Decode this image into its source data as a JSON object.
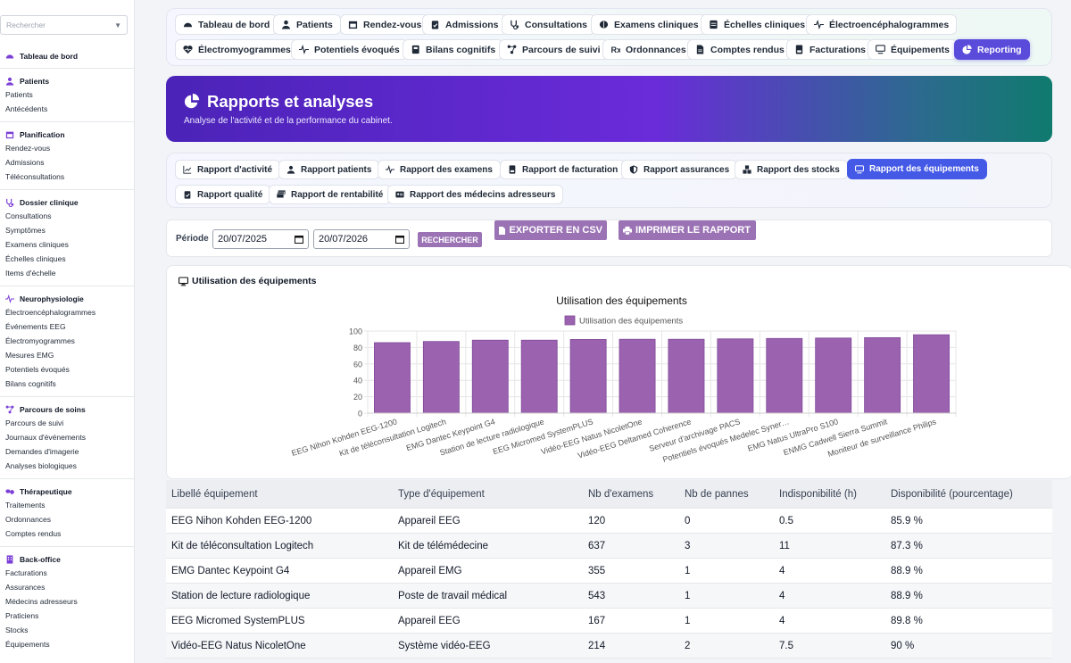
{
  "sidebar": {
    "search_placeholder": "Rechercher",
    "sections": [
      {
        "title": "Tableau de bord",
        "icon": "gauge-icon",
        "items": []
      },
      {
        "title": "Patients",
        "icon": "user-icon",
        "items": [
          "Patients",
          "Antécédents"
        ]
      },
      {
        "title": "Planification",
        "icon": "calendar-icon",
        "items": [
          "Rendez-vous",
          "Admissions",
          "Téléconsultations"
        ]
      },
      {
        "title": "Dossier clinique",
        "icon": "stethoscope-icon",
        "items": [
          "Consultations",
          "Symptômes",
          "Examens cliniques",
          "Échelles cliniques",
          "Items d'échelle"
        ]
      },
      {
        "title": "Neurophysiologie",
        "icon": "waveform-icon",
        "items": [
          "Électroencéphalogrammes",
          "Événements EEG",
          "Électromyogrammes",
          "Mesures EMG",
          "Potentiels évoqués",
          "Bilans cognitifs"
        ]
      },
      {
        "title": "Parcours de soins",
        "icon": "route-icon",
        "items": [
          "Parcours de suivi",
          "Journaux d'événements",
          "Demandes d'imagerie",
          "Analyses biologiques"
        ]
      },
      {
        "title": "Thérapeutique",
        "icon": "pills-icon",
        "items": [
          "Traitements",
          "Ordonnances",
          "Comptes rendus"
        ]
      },
      {
        "title": "Back-office",
        "icon": "building-icon",
        "items": [
          "Facturations",
          "Assurances",
          "Médecins adresseurs",
          "Praticiens",
          "Stocks",
          "Équipements"
        ]
      }
    ]
  },
  "topnav": {
    "tabs": [
      {
        "label": "Tableau de bord",
        "icon": "gauge-icon"
      },
      {
        "label": "Patients",
        "icon": "user-icon"
      },
      {
        "label": "Rendez-vous",
        "icon": "calendar-icon"
      },
      {
        "label": "Admissions",
        "icon": "clipboard-check-icon"
      },
      {
        "label": "Consultations",
        "icon": "stethoscope-icon"
      },
      {
        "label": "Examens cliniques",
        "icon": "brain-icon"
      },
      {
        "label": "Échelles cliniques",
        "icon": "list-icon"
      },
      {
        "label": "Électroencéphalogrammes",
        "icon": "waveform-icon"
      },
      {
        "label": "Électromyogrammes",
        "icon": "heart-pulse-icon"
      },
      {
        "label": "Potentiels évoqués",
        "icon": "waveform-icon"
      },
      {
        "label": "Bilans cognitifs",
        "icon": "book-icon"
      },
      {
        "label": "Parcours de suivi",
        "icon": "route-icon"
      },
      {
        "label": "Ordonnances",
        "icon": "prescription-icon"
      },
      {
        "label": "Comptes rendus",
        "icon": "file-icon"
      },
      {
        "label": "Facturations",
        "icon": "invoice-icon"
      },
      {
        "label": "Équipements",
        "icon": "desktop-icon"
      },
      {
        "label": "Reporting",
        "icon": "pie-chart-icon"
      }
    ]
  },
  "banner": {
    "title": "Rapports et analyses",
    "subtitle": "Analyse de l'activité et de la performance du cabinet."
  },
  "report_tabs": [
    {
      "label": "Rapport d'activité",
      "icon": "line-chart-icon"
    },
    {
      "label": "Rapport patients",
      "icon": "user-icon"
    },
    {
      "label": "Rapport des examens",
      "icon": "waveform-icon"
    },
    {
      "label": "Rapport de facturation",
      "icon": "invoice-icon"
    },
    {
      "label": "Rapport assurances",
      "icon": "shield-icon"
    },
    {
      "label": "Rapport des stocks",
      "icon": "boxes-icon"
    },
    {
      "label": "Rapport des équipements",
      "icon": "desktop-icon"
    },
    {
      "label": "Rapport qualité",
      "icon": "clipboard-check-icon"
    },
    {
      "label": "Rapport de rentabilité",
      "icon": "money-icon"
    },
    {
      "label": "Rapport des médecins adresseurs",
      "icon": "id-card-icon"
    }
  ],
  "filters": {
    "period_label": "Période",
    "date_from": "20/07/2025",
    "date_to": "20/07/2026",
    "search_button": "RECHERCHER",
    "export_button": "EXPORTER EN CSV",
    "print_button": "IMPRIMER LE RAPPORT"
  },
  "card": {
    "title": "Utilisation des équipements"
  },
  "colors": {
    "bar": "#9b62b0",
    "bar_stroke": "#7f4a98",
    "accent": "#5b4bdb"
  },
  "chart_data": {
    "type": "bar",
    "title": "Utilisation des équipements",
    "categories": [
      "EEG Nihon Kohden EEG-1200",
      "Kit de téléconsultation Logitech",
      "EMG Dantec Keypoint G4",
      "Station de lecture radiologique",
      "EEG Micromed SystemPLUS",
      "Vidéo-EEG Natus NicoletOne",
      "Vidéo-EEG Deltamed Coherence",
      "Serveur d'archivage PACS",
      "Potentiels évoqués Medelec Syner…",
      "EMG Natus UltraPro S100",
      "ENMG Cadwell Sierra Summit",
      "Moniteur de surveillance Philips"
    ],
    "series": [
      {
        "name": "Utilisation des équipements",
        "values": [
          85.9,
          87.3,
          88.9,
          88.9,
          89.8,
          90,
          90,
          90.5,
          91,
          91.5,
          92,
          95.5
        ]
      }
    ],
    "ylim": [
      0,
      100
    ],
    "yticks": [
      0,
      20,
      40,
      60,
      80,
      100
    ],
    "grid": true,
    "legend": "top"
  },
  "table": {
    "headers": [
      "Libellé équipement",
      "Type d'équipement",
      "Nb d'examens",
      "Nb de pannes",
      "Indisponibilité (h)",
      "Disponibilité (pourcentage)"
    ],
    "rows": [
      [
        "EEG Nihon Kohden EEG-1200",
        "Appareil EEG",
        "120",
        "0",
        "0.5",
        "85.9 %"
      ],
      [
        "Kit de téléconsultation Logitech",
        "Kit de télémédecine",
        "637",
        "3",
        "11",
        "87.3 %"
      ],
      [
        "EMG Dantec Keypoint G4",
        "Appareil EMG",
        "355",
        "1",
        "4",
        "88.9 %"
      ],
      [
        "Station de lecture radiologique",
        "Poste de travail médical",
        "543",
        "1",
        "4",
        "88.9 %"
      ],
      [
        "EEG Micromed SystemPLUS",
        "Appareil EEG",
        "167",
        "1",
        "4",
        "89.8 %"
      ],
      [
        "Vidéo-EEG Natus NicoletOne",
        "Système vidéo-EEG",
        "214",
        "2",
        "7.5",
        "90 %"
      ]
    ]
  }
}
